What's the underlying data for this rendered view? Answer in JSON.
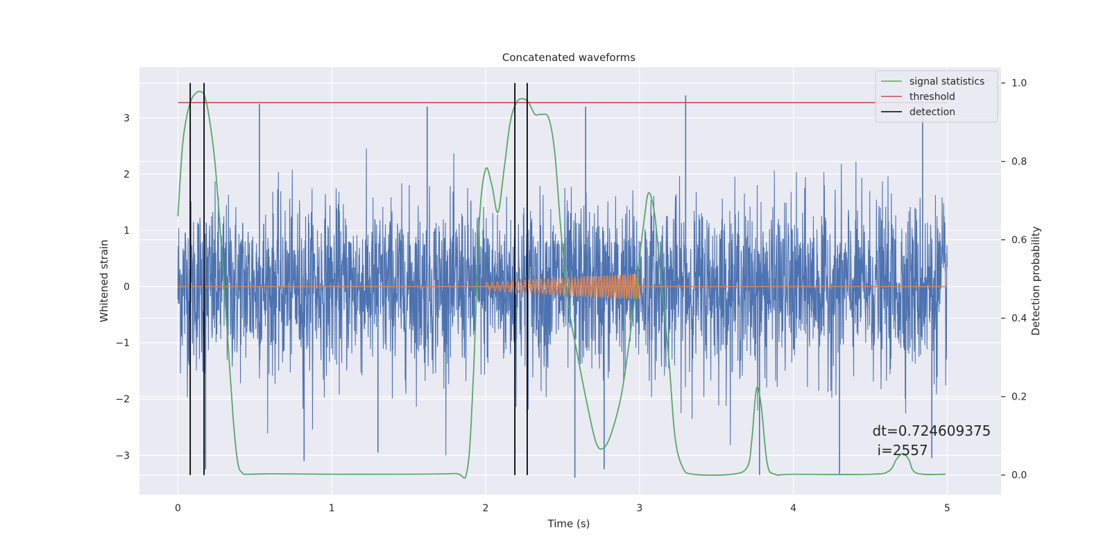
{
  "chart_data": {
    "type": "line",
    "title": "Concatenated waveforms",
    "xlabel": "Time (s)",
    "ylabel_left": "Whitened strain",
    "ylabel_right": "Detection probability",
    "xlim": [
      -0.25,
      5.35
    ],
    "ylim_left": [
      -3.7,
      3.9
    ],
    "ylim_right": [
      -0.05,
      1.04
    ],
    "x_ticks": [
      0,
      1,
      2,
      3,
      4,
      5
    ],
    "x_tick_labels": [
      "0",
      "1",
      "2",
      "3",
      "4",
      "5"
    ],
    "y_left_ticks": [
      -3,
      -2,
      -1,
      0,
      1,
      2,
      3
    ],
    "y_left_tick_labels": [
      "−3",
      "−2",
      "−1",
      "0",
      "1",
      "2",
      "3"
    ],
    "y_right_ticks": [
      0.0,
      0.2,
      0.4,
      0.6,
      0.8,
      1.0
    ],
    "y_right_tick_labels": [
      "0.0",
      "0.2",
      "0.4",
      "0.6",
      "0.8",
      "1.0"
    ],
    "grid": true,
    "legend_position": "top-right",
    "legend": [
      {
        "label": "signal statistics",
        "color": "#55a868"
      },
      {
        "label": "threshold",
        "color": "#c44e52"
      },
      {
        "label": "detection",
        "color": "#000000"
      }
    ],
    "series": [
      {
        "kind": "strain_noise",
        "color": "#4c72b0",
        "x_range": [
          0,
          5
        ],
        "typical_amplitude": 0.75,
        "notable_peaks": [
          {
            "x": 0.08,
            "y": 2.9
          },
          {
            "x": 0.18,
            "y": -3.25
          },
          {
            "x": 0.53,
            "y": 3.25
          },
          {
            "x": 0.82,
            "y": -3.1
          },
          {
            "x": 1.3,
            "y": -2.95
          },
          {
            "x": 1.62,
            "y": 3.2
          },
          {
            "x": 2.58,
            "y": -3.4
          },
          {
            "x": 2.65,
            "y": 3.2
          },
          {
            "x": 2.77,
            "y": -3.25
          },
          {
            "x": 3.3,
            "y": 3.4
          },
          {
            "x": 3.78,
            "y": -3.35
          },
          {
            "x": 4.3,
            "y": -3.35
          },
          {
            "x": 4.84,
            "y": 3.25
          },
          {
            "x": 4.9,
            "y": -3.05
          }
        ]
      },
      {
        "kind": "injected_chirp",
        "color": "#dd8452",
        "x_range": [
          2.0,
          3.0
        ],
        "amplitude_start": 0.07,
        "amplitude_end": 0.23,
        "cycles": 46
      },
      {
        "name": "signal statistics",
        "axis": "right",
        "color": "#55a868",
        "x": [
          0.0,
          0.03,
          0.06,
          0.09,
          0.12,
          0.14,
          0.17,
          0.2,
          0.24,
          0.28,
          0.32,
          0.36,
          0.39,
          0.42,
          0.45,
          0.6,
          1.0,
          1.5,
          1.8,
          1.88,
          1.92,
          1.96,
          2.0,
          2.04,
          2.08,
          2.12,
          2.16,
          2.2,
          2.24,
          2.28,
          2.32,
          2.36,
          2.41,
          2.45,
          2.49,
          2.54,
          2.6,
          2.66,
          2.72,
          2.77,
          2.82,
          2.88,
          2.93,
          2.98,
          3.03,
          3.06,
          3.1,
          3.14,
          3.19,
          3.23,
          3.28,
          3.35,
          3.6,
          3.7,
          3.73,
          3.76,
          3.79,
          3.83,
          3.88,
          4.0,
          4.5,
          4.62,
          4.67,
          4.71,
          4.75,
          4.8,
          4.99
        ],
        "y": [
          0.66,
          0.84,
          0.92,
          0.96,
          0.975,
          0.978,
          0.97,
          0.92,
          0.8,
          0.6,
          0.37,
          0.14,
          0.03,
          0.005,
          0.002,
          0.003,
          0.002,
          0.002,
          0.004,
          0.012,
          0.25,
          0.65,
          0.78,
          0.74,
          0.67,
          0.78,
          0.9,
          0.95,
          0.96,
          0.95,
          0.92,
          0.92,
          0.91,
          0.82,
          0.62,
          0.43,
          0.3,
          0.18,
          0.08,
          0.07,
          0.11,
          0.2,
          0.33,
          0.49,
          0.65,
          0.72,
          0.66,
          0.5,
          0.3,
          0.1,
          0.02,
          0.002,
          0.002,
          0.02,
          0.09,
          0.22,
          0.18,
          0.03,
          0.002,
          0.002,
          0.002,
          0.01,
          0.04,
          0.055,
          0.04,
          0.005,
          0.002
        ]
      },
      {
        "name": "threshold",
        "axis": "right",
        "color": "#c44e52",
        "x": [
          0,
          5
        ],
        "y": [
          0.95,
          0.95
        ]
      }
    ],
    "detections": [
      0.08,
      0.17,
      2.19,
      2.27
    ],
    "annotation": {
      "line1": "dt=0.724609375",
      "line2": "i=2557",
      "x": 4.5,
      "y_left": -2.65
    }
  }
}
